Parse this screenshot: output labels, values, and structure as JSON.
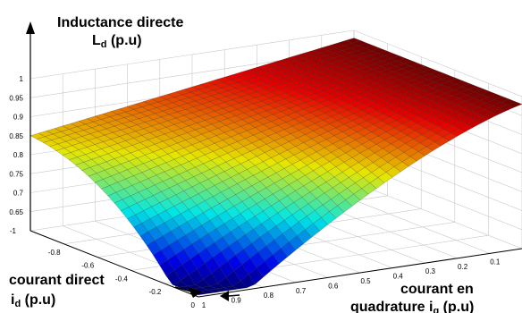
{
  "chart_data": {
    "type": "surface",
    "title": "Inductance directe",
    "zlabel": "L",
    "zlabel_sub": "d",
    "zlabel_unit": " (p.u)",
    "xlabel_line1": "courant direct",
    "xlabel_var": "i",
    "xlabel_sub": "d",
    "xlabel_unit": " (p.u)",
    "ylabel_line1": "courant en",
    "ylabel_line2": "quadrature i",
    "ylabel_sub": "q",
    "ylabel_unit": " (p.u)",
    "id_axis": {
      "range": [
        -1,
        0
      ],
      "ticks": [
        "-0.8",
        "-0.6",
        "-0.4",
        "-0.2",
        "0"
      ]
    },
    "iq_axis": {
      "range": [
        0,
        1
      ],
      "ticks": [
        "1",
        "0.9",
        "0.8",
        "0.7",
        "0.6",
        "0.5",
        "0.4",
        "0.3",
        "0.2",
        "0.1",
        "0"
      ]
    },
    "z_axis": {
      "range": [
        0.6,
        1.0
      ],
      "ticks": [
        "1",
        "0.95",
        "0.9",
        "0.85",
        "0.8",
        "0.75",
        "0.7",
        "0.65"
      ],
      "base_label": "-1"
    },
    "grid": true,
    "colormap": "jet",
    "corner_values": [
      {
        "id": -1,
        "iq": 0,
        "Ld": 0.9
      },
      {
        "id": -1,
        "iq": 1,
        "Ld": 0.82
      },
      {
        "id": 0,
        "iq": 1,
        "Ld": 0.56
      },
      {
        "id": 0,
        "iq": 0,
        "Ld": 0.97
      }
    ]
  }
}
